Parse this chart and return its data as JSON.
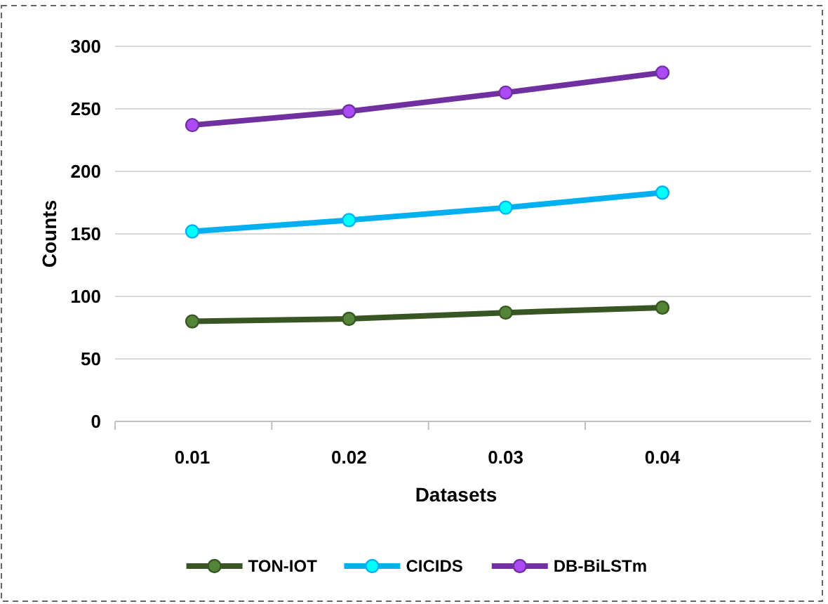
{
  "chart_data": {
    "type": "line",
    "xlabel": "Datasets",
    "ylabel": "Counts",
    "categories": [
      "0.01",
      "0.02",
      "0.03",
      "0.04"
    ],
    "series": [
      {
        "name": "TON-IOT",
        "color": "#375623",
        "values": [
          80,
          82,
          87,
          91
        ]
      },
      {
        "name": "CICIDS",
        "color": "#00b0f0",
        "values": [
          152,
          161,
          171,
          183
        ]
      },
      {
        "name": "DB-BiLSTm",
        "color": "#7030a0",
        "values": [
          237,
          248,
          263,
          279
        ]
      }
    ],
    "ylim": [
      0,
      300
    ],
    "yticks": [
      0,
      50,
      100,
      150,
      200,
      250,
      300
    ],
    "grid": "y",
    "legend": "bottom",
    "marker": "circle",
    "line_style": "solid"
  }
}
